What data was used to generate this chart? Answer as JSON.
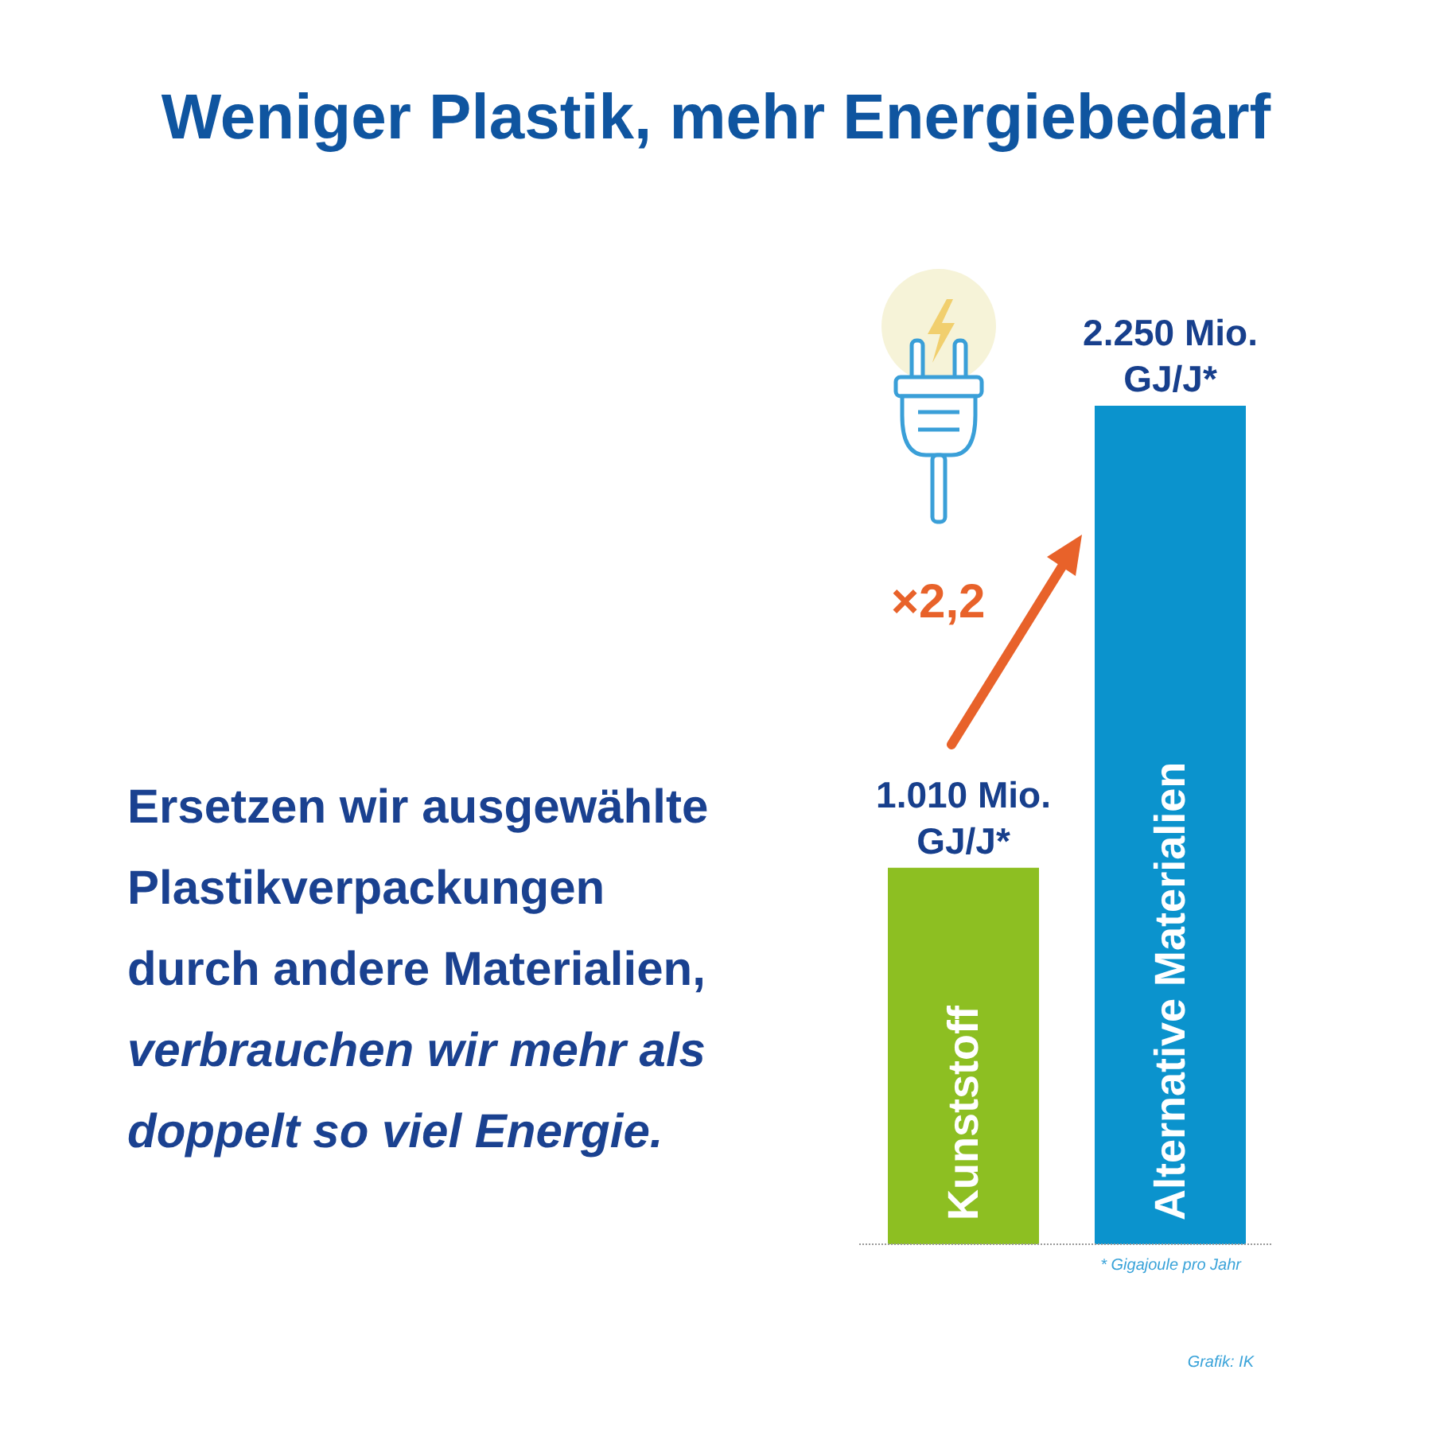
{
  "chart_data": {
    "type": "bar",
    "title": "Weniger Plastik, mehr Energiebedarf",
    "categories": [
      "Kunststoff",
      "Alternative Materialien"
    ],
    "values": [
      1010,
      2250
    ],
    "colors": [
      "#8dbf22",
      "#0b93cd"
    ],
    "value_labels": [
      "1.010 Mio. GJ/J*",
      "2.250 Mio. GJ/J*"
    ],
    "annotations": [
      "×2,2",
      "Ersetzen wir ausgewählte Plastikverpackungen durch andere Materialien,",
      "verbrauchen wir mehr als doppelt so viel Energie.",
      "* Gigajoule pro Jahr",
      "Grafik: IK"
    ]
  }
}
